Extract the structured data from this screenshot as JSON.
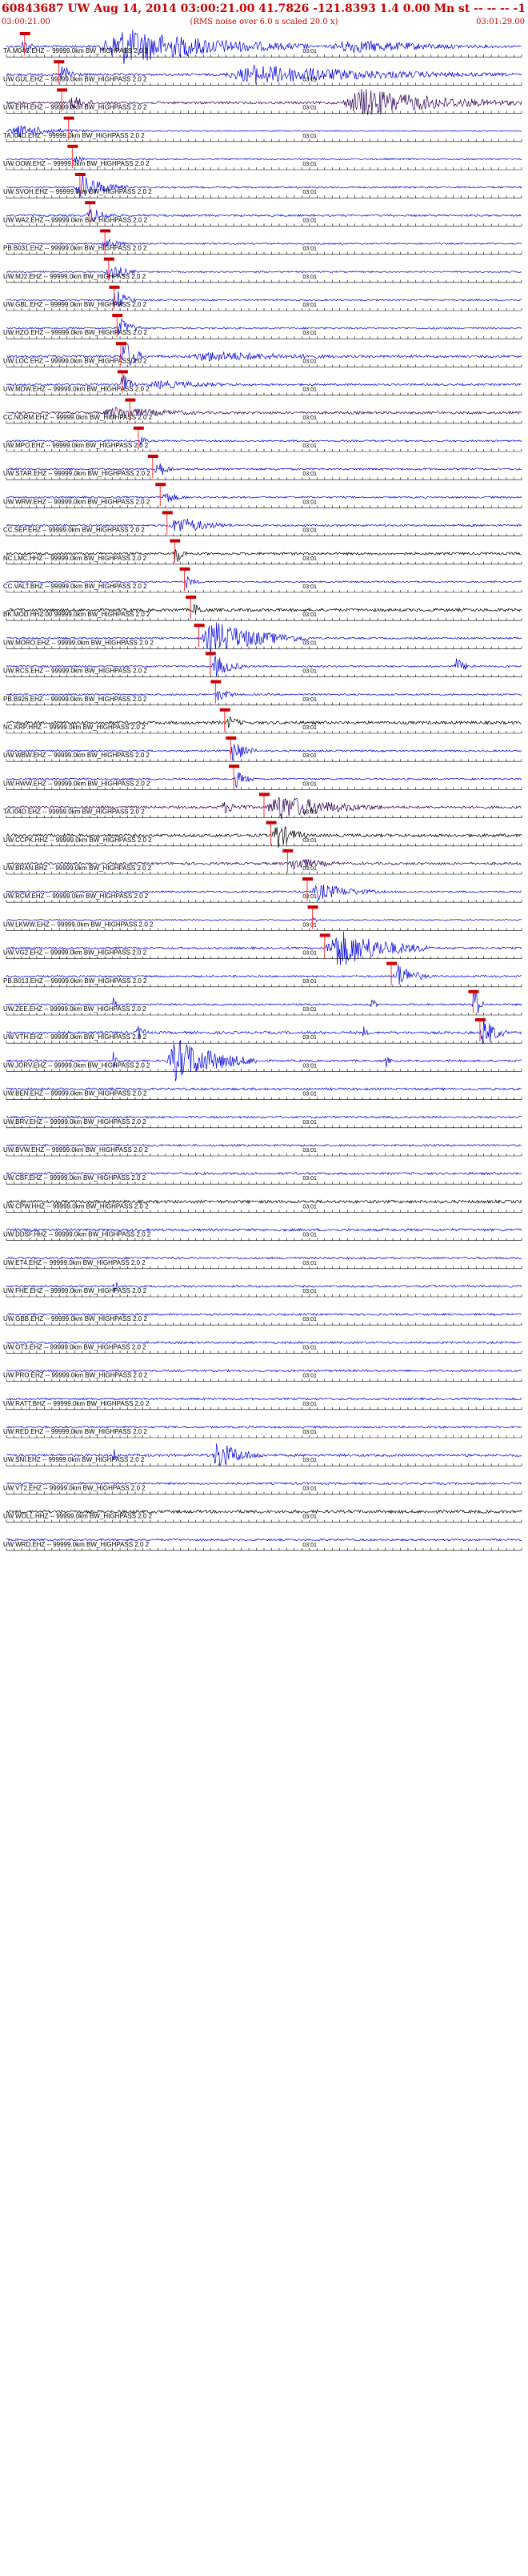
{
  "header": {
    "title": "60843687 UW Aug 14, 2014 03:00:21.00  41.7826 -121.8393  1.4 0.00 Mn st -- -- --  -1",
    "start_time": "03:00:21.00",
    "subtitle": "(RMS noise over 6.0 s scaled 20.0 x)",
    "end_time": "03:01:29.00"
  },
  "colors": {
    "header_text": "#cc0000",
    "pick": "#cc0000",
    "pick_line": "#ff3333",
    "blue": "#0000dd",
    "purple": "#300055",
    "black": "#000000",
    "axis": "#000000"
  },
  "chart_data": {
    "type": "line",
    "title": "60843687 UW Aug 14, 2014 03:00:21.00  41.7826 -121.8393  1.4 0.00 Mn st -- -- --  -1",
    "x_range_seconds": [
      0,
      68
    ],
    "x_start": "03:00:21.00",
    "x_end": "03:01:29.00",
    "tick_label": "03:01",
    "tick_label_seconds": 39,
    "tick_every_seconds": 1,
    "grid": false,
    "series": [
      {
        "name": "TA.M04C.EHZ -- 99999.0km BW_HIGHPASS  2.0  2",
        "color": "blue",
        "pick_s": 2.4,
        "base": 0.045,
        "events": [
          [
            12,
            40,
            0.75
          ],
          [
            2,
            4,
            0.45
          ],
          [
            42,
            68,
            0.28
          ]
        ]
      },
      {
        "name": "UW.GUL.EHZ -- 99999.0km BW_HIGHPASS  2.0  2",
        "color": "blue",
        "pick_s": 6.9,
        "base": 0.05,
        "events": [
          [
            7,
            10,
            0.45
          ],
          [
            28,
            68,
            0.4
          ],
          [
            36,
            37,
            0.5
          ]
        ]
      },
      {
        "name": "UW.EPH.EHZ -- 99999.0km BW_HIGHPASS  2.0  2",
        "color": "purple",
        "pick_s": 7.3,
        "base": 0.05,
        "events": [
          [
            8,
            13,
            0.3
          ],
          [
            44,
            68,
            0.6
          ]
        ]
      },
      {
        "name": "TA.I04D.EHZ -- 99999.0km BW_HIGHPASS  2.0  2",
        "color": "blue",
        "pick_s": 8.2,
        "base": 0.02,
        "events": [
          [
            0,
            12,
            0.25
          ]
        ]
      },
      {
        "name": "UW.OOW.EHZ -- 99999.0km BW_HIGHPASS  2.0  2",
        "color": "blue",
        "pick_s": 8.7,
        "base": 0.03,
        "events": [
          [
            8.5,
            12,
            0.15
          ]
        ]
      },
      {
        "name": "UW.SVOH.EHZ -- 99999.0km BW_HIGHPASS  2.0  2",
        "color": "blue",
        "pick_s": 9.7,
        "base": 0.035,
        "events": [
          [
            9,
            16,
            0.55
          ]
        ]
      },
      {
        "name": "UW.WA2.EHZ -- 99999.0km BW_HIGHPASS  2.0  2",
        "color": "blue",
        "pick_s": 11.0,
        "base": 0.04,
        "events": [
          [
            10.5,
            15,
            0.35
          ]
        ]
      },
      {
        "name": "PB.B031.EHZ -- 99999.0km BW_HIGHPASS  2.0  2",
        "color": "blue",
        "pick_s": 13.0,
        "base": 0.03,
        "events": [
          [
            12.5,
            16,
            0.3
          ]
        ]
      },
      {
        "name": "UW.MJ2.EHZ -- 99999.0km BW_HIGHPASS  2.0  2",
        "color": "blue",
        "pick_s": 13.5,
        "base": 0.03,
        "events": [
          [
            13,
            17,
            0.45
          ]
        ]
      },
      {
        "name": "UW.GBL.EHZ -- 99999.0km BW_HIGHPASS  2.0  2",
        "color": "blue",
        "pick_s": 14.2,
        "base": 0.03,
        "events": [
          [
            14,
            17,
            0.5
          ]
        ]
      },
      {
        "name": "UW.HZO.EHZ -- 99999.0km BW_HIGHPASS  2.0  2",
        "color": "blue",
        "pick_s": 14.6,
        "base": 0.035,
        "events": [
          [
            14.5,
            18,
            0.45
          ]
        ]
      },
      {
        "name": "UW.LOC.EHZ -- 99999.0km BW_HIGHPASS  2.0  2",
        "color": "blue",
        "pick_s": 15.1,
        "base": 0.05,
        "events": [
          [
            15,
            18,
            0.9
          ],
          [
            23,
            52,
            0.22
          ]
        ]
      },
      {
        "name": "UW.MDW.EHZ -- 99999.0km BW_HIGHPASS  2.0  2",
        "color": "blue",
        "pick_s": 15.3,
        "base": 0.04,
        "events": [
          [
            15,
            17,
            0.6
          ],
          [
            18,
            36,
            0.18
          ]
        ]
      },
      {
        "name": "CC.NORM.EHZ -- 99999.0km BW_HIGHPASS  2.0  2",
        "color": "purple",
        "pick_s": 16.3,
        "base": 0.05,
        "events": [
          [
            12,
            30,
            0.25
          ]
        ]
      },
      {
        "name": "UW.MPO.EHZ -- 99999.0km BW_HIGHPASS  2.0  2",
        "color": "blue",
        "pick_s": 17.4,
        "base": 0.035,
        "events": [
          [
            17.5,
            19,
            0.25
          ]
        ]
      },
      {
        "name": "UW.STAR.EHZ -- 99999.0km BW_HIGHPASS  2.0  2",
        "color": "blue",
        "pick_s": 19.3,
        "base": 0.04,
        "events": [
          [
            19.5,
            22,
            0.5
          ]
        ]
      },
      {
        "name": "UW.WRW.EHZ -- 99999.0km BW_HIGHPASS  2.0  2",
        "color": "blue",
        "pick_s": 20.3,
        "base": 0.035,
        "events": [
          [
            20.5,
            24,
            0.3
          ]
        ]
      },
      {
        "name": "CC.SEP.EHZ -- 99999.0km BW_HIGHPASS  2.0  2",
        "color": "blue",
        "pick_s": 21.2,
        "base": 0.04,
        "events": [
          [
            21.5,
            30,
            0.4
          ]
        ]
      },
      {
        "name": "NC.LMC.HHZ -- 99999.0km BW_HIGHPASS  2.0  2",
        "color": "black",
        "pick_s": 22.2,
        "base": 0.05,
        "events": [
          [
            22,
            24,
            0.5
          ]
        ]
      },
      {
        "name": "CC.VALT.BHZ -- 99999.0km BW_HIGHPASS  2.0  2",
        "color": "blue",
        "pick_s": 23.5,
        "base": 0.03,
        "events": [
          [
            23.5,
            26,
            0.25
          ]
        ]
      },
      {
        "name": "BK.MOD.HHZ.00 99999.0km BW_HIGHPASS  2.0  2",
        "color": "black",
        "pick_s": 24.3,
        "base": 0.06,
        "events": [
          [
            24.5,
            27,
            0.3
          ]
        ]
      },
      {
        "name": "UW.MORO.EHZ -- 99999.0km BW_HIGHPASS  2.0  2",
        "color": "blue",
        "pick_s": 25.4,
        "base": 0.035,
        "events": [
          [
            25.5,
            40,
            0.7
          ]
        ]
      },
      {
        "name": "UW.RCS.EHZ -- 99999.0km BW_HIGHPASS  2.0  2",
        "color": "blue",
        "pick_s": 26.9,
        "base": 0.035,
        "events": [
          [
            27,
            32,
            0.45
          ],
          [
            59,
            62,
            0.35
          ]
        ]
      },
      {
        "name": "PB.B926.EHZ -- 99999.0km BW_HIGHPASS  2.0  2",
        "color": "blue",
        "pick_s": 27.6,
        "base": 0.035,
        "events": [
          [
            27.5,
            31,
            0.3
          ]
        ]
      },
      {
        "name": "NC.KRP.HHZ -- 99999.0km BW_HIGHPASS  2.0  2",
        "color": "black",
        "pick_s": 28.8,
        "base": 0.06,
        "events": [
          [
            29,
            32,
            0.3
          ]
        ]
      },
      {
        "name": "UW.WBW.EHZ -- 99999.0km BW_HIGHPASS  2.0  2",
        "color": "blue",
        "pick_s": 29.6,
        "base": 0.035,
        "events": [
          [
            29.5,
            33,
            0.55
          ]
        ]
      },
      {
        "name": "UW.HWW.EHZ -- 99999.0km BW_HIGHPASS  2.0  2",
        "color": "blue",
        "pick_s": 30.0,
        "base": 0.035,
        "events": [
          [
            30,
            33,
            0.35
          ]
        ]
      },
      {
        "name": "TA.I04D.EHZ -- 99999.0km BW_HIGHPASS  2.0  2",
        "color": "purple",
        "pick_s": 34.0,
        "base": 0.05,
        "events": [
          [
            34,
            50,
            0.55
          ],
          [
            28,
            34,
            0.25
          ]
        ]
      },
      {
        "name": "UW.CCPK.HHZ -- 99999.0km BW_HIGHPASS  2.0  2",
        "color": "black",
        "pick_s": 34.9,
        "base": 0.06,
        "events": [
          [
            35,
            40,
            0.6
          ]
        ]
      },
      {
        "name": "UW.BRAN.BHZ -- 99999.0km BW_HIGHPASS  2.0  2",
        "color": "purple",
        "pick_s": 37.1,
        "base": 0.05,
        "events": [
          [
            37,
            45,
            0.3
          ]
        ]
      },
      {
        "name": "UW.RCM.EHZ -- 99999.0km BW_HIGHPASS  2.0  2",
        "color": "blue",
        "pick_s": 39.7,
        "base": 0.035,
        "events": [
          [
            40,
            50,
            0.35
          ]
        ]
      },
      {
        "name": "UW.LKWW.EHZ -- 99999.0km BW_HIGHPASS  2.0  2",
        "color": "blue",
        "pick_s": 40.4,
        "base": 0.02,
        "events": [
          [
            40,
            43,
            0.1
          ]
        ]
      },
      {
        "name": "UW.VG2.EHZ -- 99999.0km BW_HIGHPASS  2.0  2",
        "color": "blue",
        "pick_s": 42.0,
        "base": 0.04,
        "events": [
          [
            42,
            56,
            0.8
          ]
        ]
      },
      {
        "name": "PB.B013.EHZ -- 99999.0km BW_HIGHPASS  2.0  2",
        "color": "blue",
        "pick_s": 50.8,
        "base": 0.035,
        "events": [
          [
            51,
            56,
            0.55
          ]
        ]
      },
      {
        "name": "UW.ZEE.EHZ -- 99999.0km BW_HIGHPASS  2.0  2",
        "color": "blue",
        "pick_s": 61.6,
        "base": 0.035,
        "events": [
          [
            61.5,
            63,
            0.9
          ],
          [
            48,
            49,
            0.4
          ],
          [
            14,
            15,
            0.3
          ]
        ]
      },
      {
        "name": "UW.VTH.EHZ -- 99999.0km BW_HIGHPASS  2.0  2",
        "color": "blue",
        "pick_s": 62.5,
        "base": 0.05,
        "events": [
          [
            62.5,
            66,
            0.7
          ],
          [
            17,
            19,
            0.4
          ],
          [
            47,
            48,
            0.3
          ]
        ]
      },
      {
        "name": "UW.JORV.EHZ -- 99999.0km BW_HIGHPASS  2.0  2",
        "color": "blue",
        "pick_s": null,
        "base": 0.04,
        "events": [
          [
            21,
            33,
            0.9
          ],
          [
            14,
            15,
            0.5
          ],
          [
            50,
            51,
            0.3
          ]
        ]
      },
      {
        "name": "UW.BEN.EHZ -- 99999.0km BW_HIGHPASS  2.0  2",
        "color": "blue",
        "pick_s": null,
        "base": 0.045,
        "events": []
      },
      {
        "name": "UW.BRV.EHZ -- 99999.0km BW_HIGHPASS  2.0  2",
        "color": "blue",
        "pick_s": null,
        "base": 0.04,
        "events": []
      },
      {
        "name": "UW.BVW.EHZ -- 99999.0km BW_HIGHPASS  2.0  2",
        "color": "blue",
        "pick_s": null,
        "base": 0.04,
        "events": []
      },
      {
        "name": "UW.CBF.EHZ -- 99999.0km BW_HIGHPASS  2.0  2",
        "color": "blue",
        "pick_s": null,
        "base": 0.045,
        "events": []
      },
      {
        "name": "UW.CPW.HHZ -- 99999.0km BW_HIGHPASS  2.0  2",
        "color": "black",
        "pick_s": null,
        "base": 0.06,
        "events": []
      },
      {
        "name": "UW.DDSF.HHZ -- 99999.0km BW_HIGHPASS  2.0  2",
        "color": "blue",
        "pick_s": null,
        "base": 0.05,
        "events": []
      },
      {
        "name": "UW.ET4.EHZ -- 99999.0km BW_HIGHPASS  2.0  2",
        "color": "blue",
        "pick_s": null,
        "base": 0.04,
        "events": []
      },
      {
        "name": "UW.FHE.EHZ -- 99999.0km BW_HIGHPASS  2.0  2",
        "color": "blue",
        "pick_s": null,
        "base": 0.04,
        "events": [
          [
            14,
            15,
            0.4
          ]
        ]
      },
      {
        "name": "UW.GBB.EHZ -- 99999.0km BW_HIGHPASS  2.0  2",
        "color": "blue",
        "pick_s": null,
        "base": 0.04,
        "events": []
      },
      {
        "name": "UW.OT3.EHZ -- 99999.0km BW_HIGHPASS  2.0  2",
        "color": "blue",
        "pick_s": null,
        "base": 0.04,
        "events": []
      },
      {
        "name": "UW.PRO.EHZ -- 99999.0km BW_HIGHPASS  2.0  2",
        "color": "blue",
        "pick_s": null,
        "base": 0.04,
        "events": []
      },
      {
        "name": "UW.RATT.BHZ -- 99999.0km BW_HIGHPASS  2.0  2",
        "color": "blue",
        "pick_s": null,
        "base": 0.04,
        "events": []
      },
      {
        "name": "UW.RED.EHZ -- 99999.0km BW_HIGHPASS  2.0  2",
        "color": "blue",
        "pick_s": null,
        "base": 0.04,
        "events": []
      },
      {
        "name": "UW.SNI.EHZ -- 99999.0km BW_HIGHPASS  2.0  2",
        "color": "blue",
        "pick_s": null,
        "base": 0.05,
        "events": [
          [
            27,
            34,
            0.6
          ],
          [
            14,
            15,
            0.35
          ]
        ]
      },
      {
        "name": "UW.VT2.EHZ -- 99999.0km BW_HIGHPASS  2.0  2",
        "color": "blue",
        "pick_s": null,
        "base": 0.04,
        "events": []
      },
      {
        "name": "UW.WOLL.HHZ -- 99999.0km BW_HIGHPASS  2.0  2",
        "color": "black",
        "pick_s": null,
        "base": 0.06,
        "events": []
      },
      {
        "name": "UW.WRD.EHZ -- 99999.0km BW_HIGHPASS  2.0  2",
        "color": "blue",
        "pick_s": null,
        "base": 0.04,
        "events": []
      }
    ]
  }
}
